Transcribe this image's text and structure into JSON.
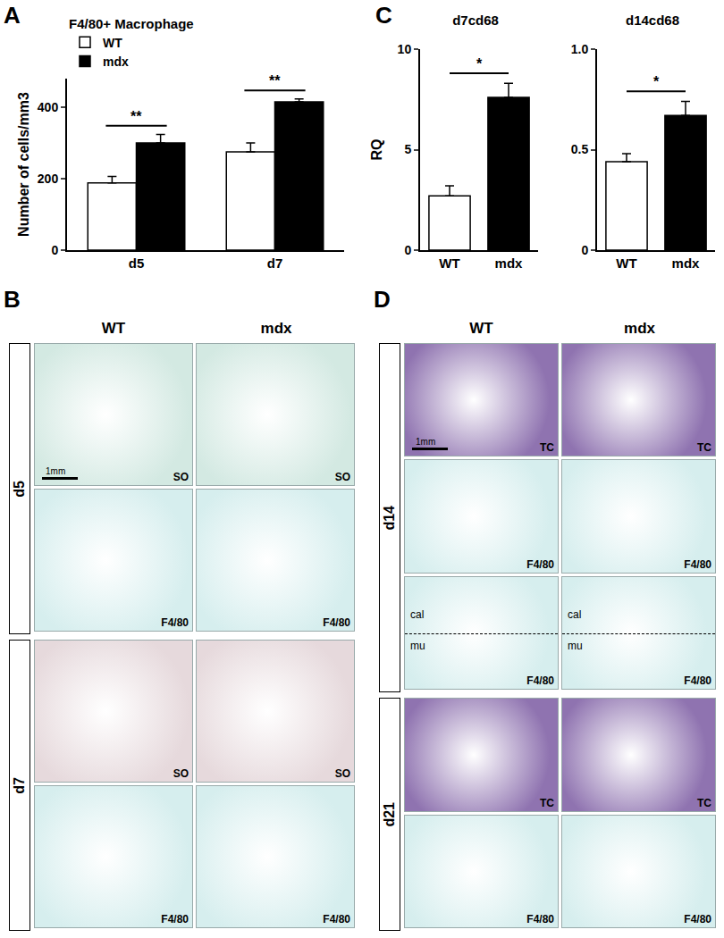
{
  "chart_data": [
    {
      "panel": "A",
      "type": "bar",
      "title": "F4/80+ Macrophage",
      "y_label": "Number of cells/mm3",
      "categories": [
        "d5",
        "d7"
      ],
      "series": [
        {
          "name": "WT",
          "color": "#ffffff",
          "values": [
            188,
            275
          ],
          "errors": [
            18,
            25
          ]
        },
        {
          "name": "mdx",
          "color": "#000000",
          "values": [
            300,
            415
          ],
          "errors": [
            24,
            8
          ]
        }
      ],
      "ylim": [
        0,
        480
      ],
      "yticks": [
        0,
        200,
        400
      ],
      "legend": "top left",
      "significance": [
        {
          "category": "d5",
          "label": "**"
        },
        {
          "category": "d7",
          "label": "**"
        }
      ]
    },
    {
      "panel": "C",
      "type": "bar",
      "title": "d7cd68",
      "y_label": "RQ",
      "categories": [
        "WT",
        "mdx"
      ],
      "values": [
        2.7,
        7.6
      ],
      "errors": [
        0.5,
        0.7
      ],
      "colors": [
        "#ffffff",
        "#000000"
      ],
      "ylim": [
        0,
        10
      ],
      "yticks": [
        0,
        5,
        10
      ],
      "significance": [
        {
          "from": "WT",
          "to": "mdx",
          "label": "*"
        }
      ]
    },
    {
      "type": "bar",
      "title": "d14cd68",
      "categories": [
        "WT",
        "mdx"
      ],
      "values": [
        0.44,
        0.67
      ],
      "errors": [
        0.04,
        0.07
      ],
      "colors": [
        "#ffffff",
        "#000000"
      ],
      "ylim": [
        0,
        1
      ],
      "yticks": [
        0,
        0.5,
        {
          "value": 1,
          "label": "1.0"
        }
      ],
      "significance": [
        {
          "from": "WT",
          "to": "mdx",
          "label": "*"
        }
      ]
    }
  ],
  "image_panels": [
    {
      "panel": "B",
      "columns": [
        "WT",
        "mdx"
      ],
      "rows": [
        {
          "label": "d5",
          "tiers": [
            {
              "stain": "SO",
              "color": "#d3e9e2",
              "scale_bar": "1mm"
            },
            {
              "stain": "F4/80",
              "color": "#d6eeee"
            }
          ]
        },
        {
          "label": "d7",
          "tiers": [
            {
              "stain": "SO",
              "color": "#e6d9dc"
            },
            {
              "stain": "F4/80",
              "color": "#d6eeee"
            }
          ]
        }
      ]
    },
    {
      "panel": "D",
      "columns": [
        "WT",
        "mdx"
      ],
      "rows": [
        {
          "label": "d14",
          "tiers": [
            {
              "stain": "TC",
              "color": "#8f73b0",
              "scale_bar": "1mm"
            },
            {
              "stain": "F4/80",
              "color": "#d6eeee"
            },
            {
              "stain": "F4/80",
              "color": "#d6eeee",
              "regions": [
                "cal",
                "mu"
              ]
            }
          ]
        },
        {
          "label": "d21",
          "tiers": [
            {
              "stain": "TC",
              "color": "#8f73b0"
            },
            {
              "stain": "F4/80",
              "color": "#d6eeee"
            }
          ]
        }
      ]
    }
  ]
}
